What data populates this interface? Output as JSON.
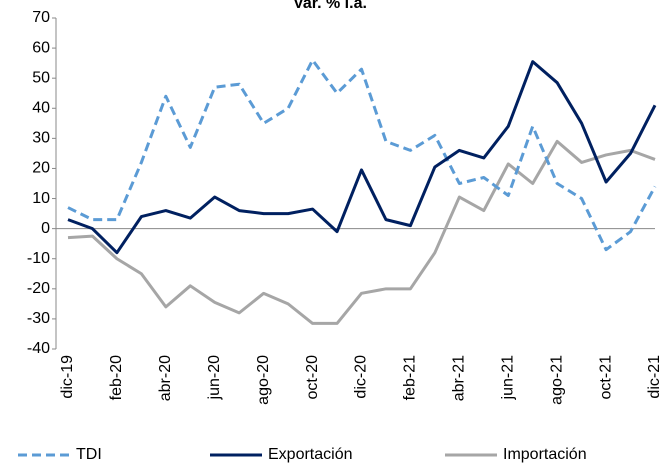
{
  "chart_data": {
    "type": "line",
    "title": "Var. % i.a.",
    "categories": [
      "dic-19",
      null,
      "feb-20",
      null,
      "abr-20",
      null,
      "jun-20",
      null,
      "ago-20",
      null,
      "oct-20",
      null,
      "dic-20",
      null,
      "feb-21",
      null,
      "abr-21",
      null,
      "jun-21",
      null,
      "ago-21",
      null,
      "oct-21",
      null,
      "dic-21"
    ],
    "series": [
      {
        "name": "TDI",
        "color": "#5b9bd5",
        "dashed": true,
        "values": [
          7,
          3,
          3,
          22,
          44,
          27,
          47,
          48,
          35,
          40,
          56,
          45,
          53,
          29,
          26,
          31,
          15,
          17,
          11,
          34,
          15,
          10,
          -7,
          -1,
          14
        ]
      },
      {
        "name": "Exportación",
        "color": "#002060",
        "dashed": false,
        "values": [
          3,
          0,
          -8,
          4,
          6,
          3.5,
          10.5,
          6,
          5,
          5,
          6.5,
          -1,
          19.5,
          3,
          1,
          20.5,
          26,
          23.5,
          34,
          55.5,
          48.5,
          35,
          15.5,
          25,
          41
        ]
      },
      {
        "name": "Importación",
        "color": "#a6a6a6",
        "dashed": false,
        "values": [
          -3,
          -2.5,
          -10,
          -15,
          -26,
          -19,
          -24.5,
          -28,
          -21.5,
          -25,
          -31.5,
          -31.5,
          -21.5,
          -20,
          -20,
          -8,
          10.5,
          6,
          21.5,
          15,
          29,
          22,
          24.5,
          26,
          23
        ]
      }
    ],
    "ylim": [
      -40,
      70
    ],
    "yticks": [
      -40,
      -30,
      -20,
      -10,
      0,
      10,
      20,
      30,
      40,
      50,
      60,
      70
    ],
    "grid": false,
    "legend": "bottom"
  }
}
